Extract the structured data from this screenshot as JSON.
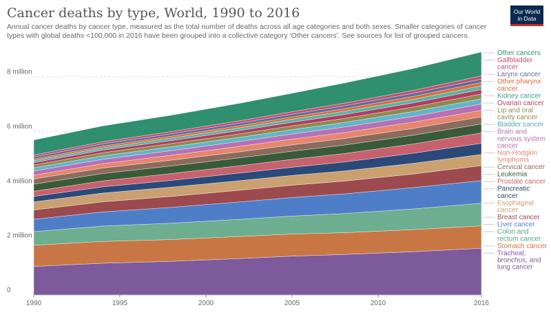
{
  "header": {
    "title": "Cancer deaths by type, World, 1990 to 2016",
    "subtitle": "Annual cancer deaths by cancer type, measured as the total number of deaths across all age categories and both sexes. Smaller categories of cancer types with global deaths <100,000 in 2016 have been grouped into a collective category 'Other cancers'. See sources for list of grouped cancers.",
    "logo_line1": "Our World",
    "logo_line2": "in Data",
    "logo_colors": {
      "bg": "#0b2a4f",
      "stripe": "#d6261f"
    }
  },
  "chart_data": {
    "type": "area",
    "stacked": true,
    "title": "Cancer deaths by type, World, 1990 to 2016",
    "x": [
      1990,
      1994,
      1998,
      2002,
      2005,
      2008,
      2012,
      2016
    ],
    "xticks": [
      1990,
      1995,
      2000,
      2005,
      2010,
      2016
    ],
    "ylim": [
      0,
      9000000
    ],
    "yticks": [
      0,
      2000000,
      4000000,
      6000000,
      8000000
    ],
    "ytick_labels": [
      "0",
      "2 million",
      "4 million",
      "6 million",
      "8 million"
    ],
    "grid": true,
    "legend_position": "right",
    "series": [
      {
        "name": "Tracheal, bronchus, and lung cancer",
        "color": "#7d5a9b",
        "values": [
          1040000,
          1160000,
          1230000,
          1330000,
          1420000,
          1480000,
          1580000,
          1710000
        ]
      },
      {
        "name": "Stomach cancer",
        "color": "#c97645",
        "values": [
          780000,
          800000,
          800000,
          810000,
          810000,
          800000,
          810000,
          820000
        ]
      },
      {
        "name": "Colon and rectum cancer",
        "color": "#6cae8f",
        "values": [
          500000,
          560000,
          600000,
          630000,
          660000,
          700000,
          760000,
          830000
        ]
      },
      {
        "name": "Liver cancer",
        "color": "#4f7ec9",
        "values": [
          450000,
          520000,
          580000,
          640000,
          680000,
          720000,
          780000,
          830000
        ]
      },
      {
        "name": "Breast cancer",
        "color": "#9c4a4e",
        "values": [
          340000,
          370000,
          400000,
          430000,
          450000,
          470000,
          500000,
          550000
        ]
      },
      {
        "name": "Esophageal cancer",
        "color": "#caa070",
        "values": [
          300000,
          320000,
          340000,
          350000,
          360000,
          370000,
          390000,
          410000
        ]
      },
      {
        "name": "Pancreatic cancer",
        "color": "#2c4a79",
        "values": [
          200000,
          230000,
          250000,
          280000,
          300000,
          330000,
          370000,
          410000
        ]
      },
      {
        "name": "Prostate cancer",
        "color": "#c8616e",
        "values": [
          190000,
          220000,
          250000,
          270000,
          290000,
          310000,
          340000,
          380000
        ]
      },
      {
        "name": "Leukemia",
        "color": "#3a5b39",
        "values": [
          260000,
          270000,
          280000,
          290000,
          300000,
          310000,
          320000,
          330000
        ]
      },
      {
        "name": "Cervical cancer",
        "color": "#8b6b5c",
        "values": [
          190000,
          200000,
          210000,
          220000,
          230000,
          240000,
          250000,
          260000
        ]
      },
      {
        "name": "Non-Hodgkin lymphoma",
        "color": "#e5866e",
        "values": [
          140000,
          160000,
          180000,
          200000,
          210000,
          220000,
          230000,
          240000
        ]
      },
      {
        "name": "Brain and nervous system cancer",
        "color": "#b96fb3",
        "values": [
          150000,
          160000,
          170000,
          180000,
          190000,
          200000,
          210000,
          230000
        ]
      },
      {
        "name": "Bladder cancer",
        "color": "#63b4c9",
        "values": [
          120000,
          130000,
          140000,
          150000,
          160000,
          170000,
          180000,
          190000
        ]
      },
      {
        "name": "Lip and oral cavity cancer",
        "color": "#8f8a4c",
        "values": [
          100000,
          110000,
          120000,
          130000,
          140000,
          150000,
          165000,
          180000
        ]
      },
      {
        "name": "Ovarian cancer",
        "color": "#b53a63",
        "values": [
          90000,
          100000,
          110000,
          120000,
          130000,
          140000,
          150000,
          160000
        ]
      },
      {
        "name": "Kidney cancer",
        "color": "#56b6a0",
        "values": [
          70000,
          80000,
          90000,
          100000,
          110000,
          120000,
          130000,
          140000
        ]
      },
      {
        "name": "Other pharynx cancer",
        "color": "#e0693b",
        "values": [
          60000,
          65000,
          70000,
          80000,
          85000,
          95000,
          110000,
          120000
        ]
      },
      {
        "name": "Larynx cancer",
        "color": "#5d6f98",
        "values": [
          80000,
          85000,
          90000,
          95000,
          100000,
          105000,
          115000,
          125000
        ]
      },
      {
        "name": "Gallbladder cancer",
        "color": "#c84b6e",
        "values": [
          70000,
          75000,
          80000,
          85000,
          90000,
          95000,
          105000,
          115000
        ]
      },
      {
        "name": "Other cancers",
        "color": "#2f8f6f",
        "values": [
          550000,
          580000,
          600000,
          640000,
          680000,
          740000,
          800000,
          880000
        ]
      }
    ],
    "legend_labels": [
      {
        "lines": [
          "Other cancers"
        ],
        "color": "#2f8f6f"
      },
      {
        "lines": [
          "Gallbladder",
          "cancer"
        ],
        "color": "#c84b6e"
      },
      {
        "lines": [
          "Larynx cancer"
        ],
        "color": "#5d6f98"
      },
      {
        "lines": [
          "Other pharynx",
          "cancer"
        ],
        "color": "#e0693b"
      },
      {
        "lines": [
          "Kidney cancer"
        ],
        "color": "#3f9d8a"
      },
      {
        "lines": [
          "Ovarian cancer"
        ],
        "color": "#b53a63"
      },
      {
        "lines": [
          "Lip and oral",
          "cavity cancer"
        ],
        "color": "#8f8a4c"
      },
      {
        "lines": [
          "Bladder cancer"
        ],
        "color": "#4fa8bf"
      },
      {
        "lines": [
          "Brain and",
          "nervous system",
          "cancer"
        ],
        "color": "#b96fb3"
      },
      {
        "lines": [
          "Non-Hodgkin",
          "lymphoma"
        ],
        "color": "#e5866e"
      },
      {
        "lines": [
          "Cervical cancer"
        ],
        "color": "#8b6b5c"
      },
      {
        "lines": [
          "Leukemia"
        ],
        "color": "#3a5b39"
      },
      {
        "lines": [
          "Prostate cancer"
        ],
        "color": "#c8616e"
      },
      {
        "lines": [
          "Pancreatic",
          "cancer"
        ],
        "color": "#2c4a79"
      },
      {
        "lines": [
          "Esophageal",
          "cancer"
        ],
        "color": "#caa070"
      },
      {
        "lines": [
          "Breast cancer"
        ],
        "color": "#9c4a4e"
      },
      {
        "lines": [
          "Liver cancer"
        ],
        "color": "#4f7ec9"
      },
      {
        "lines": [
          "Colon and",
          "rectum cancer"
        ],
        "color": "#57a082"
      },
      {
        "lines": [
          "Stomach cancer"
        ],
        "color": "#c97645"
      },
      {
        "lines": [
          "Tracheal,",
          "bronchus, and",
          "lung cancer"
        ],
        "color": "#7d5a9b"
      }
    ]
  }
}
